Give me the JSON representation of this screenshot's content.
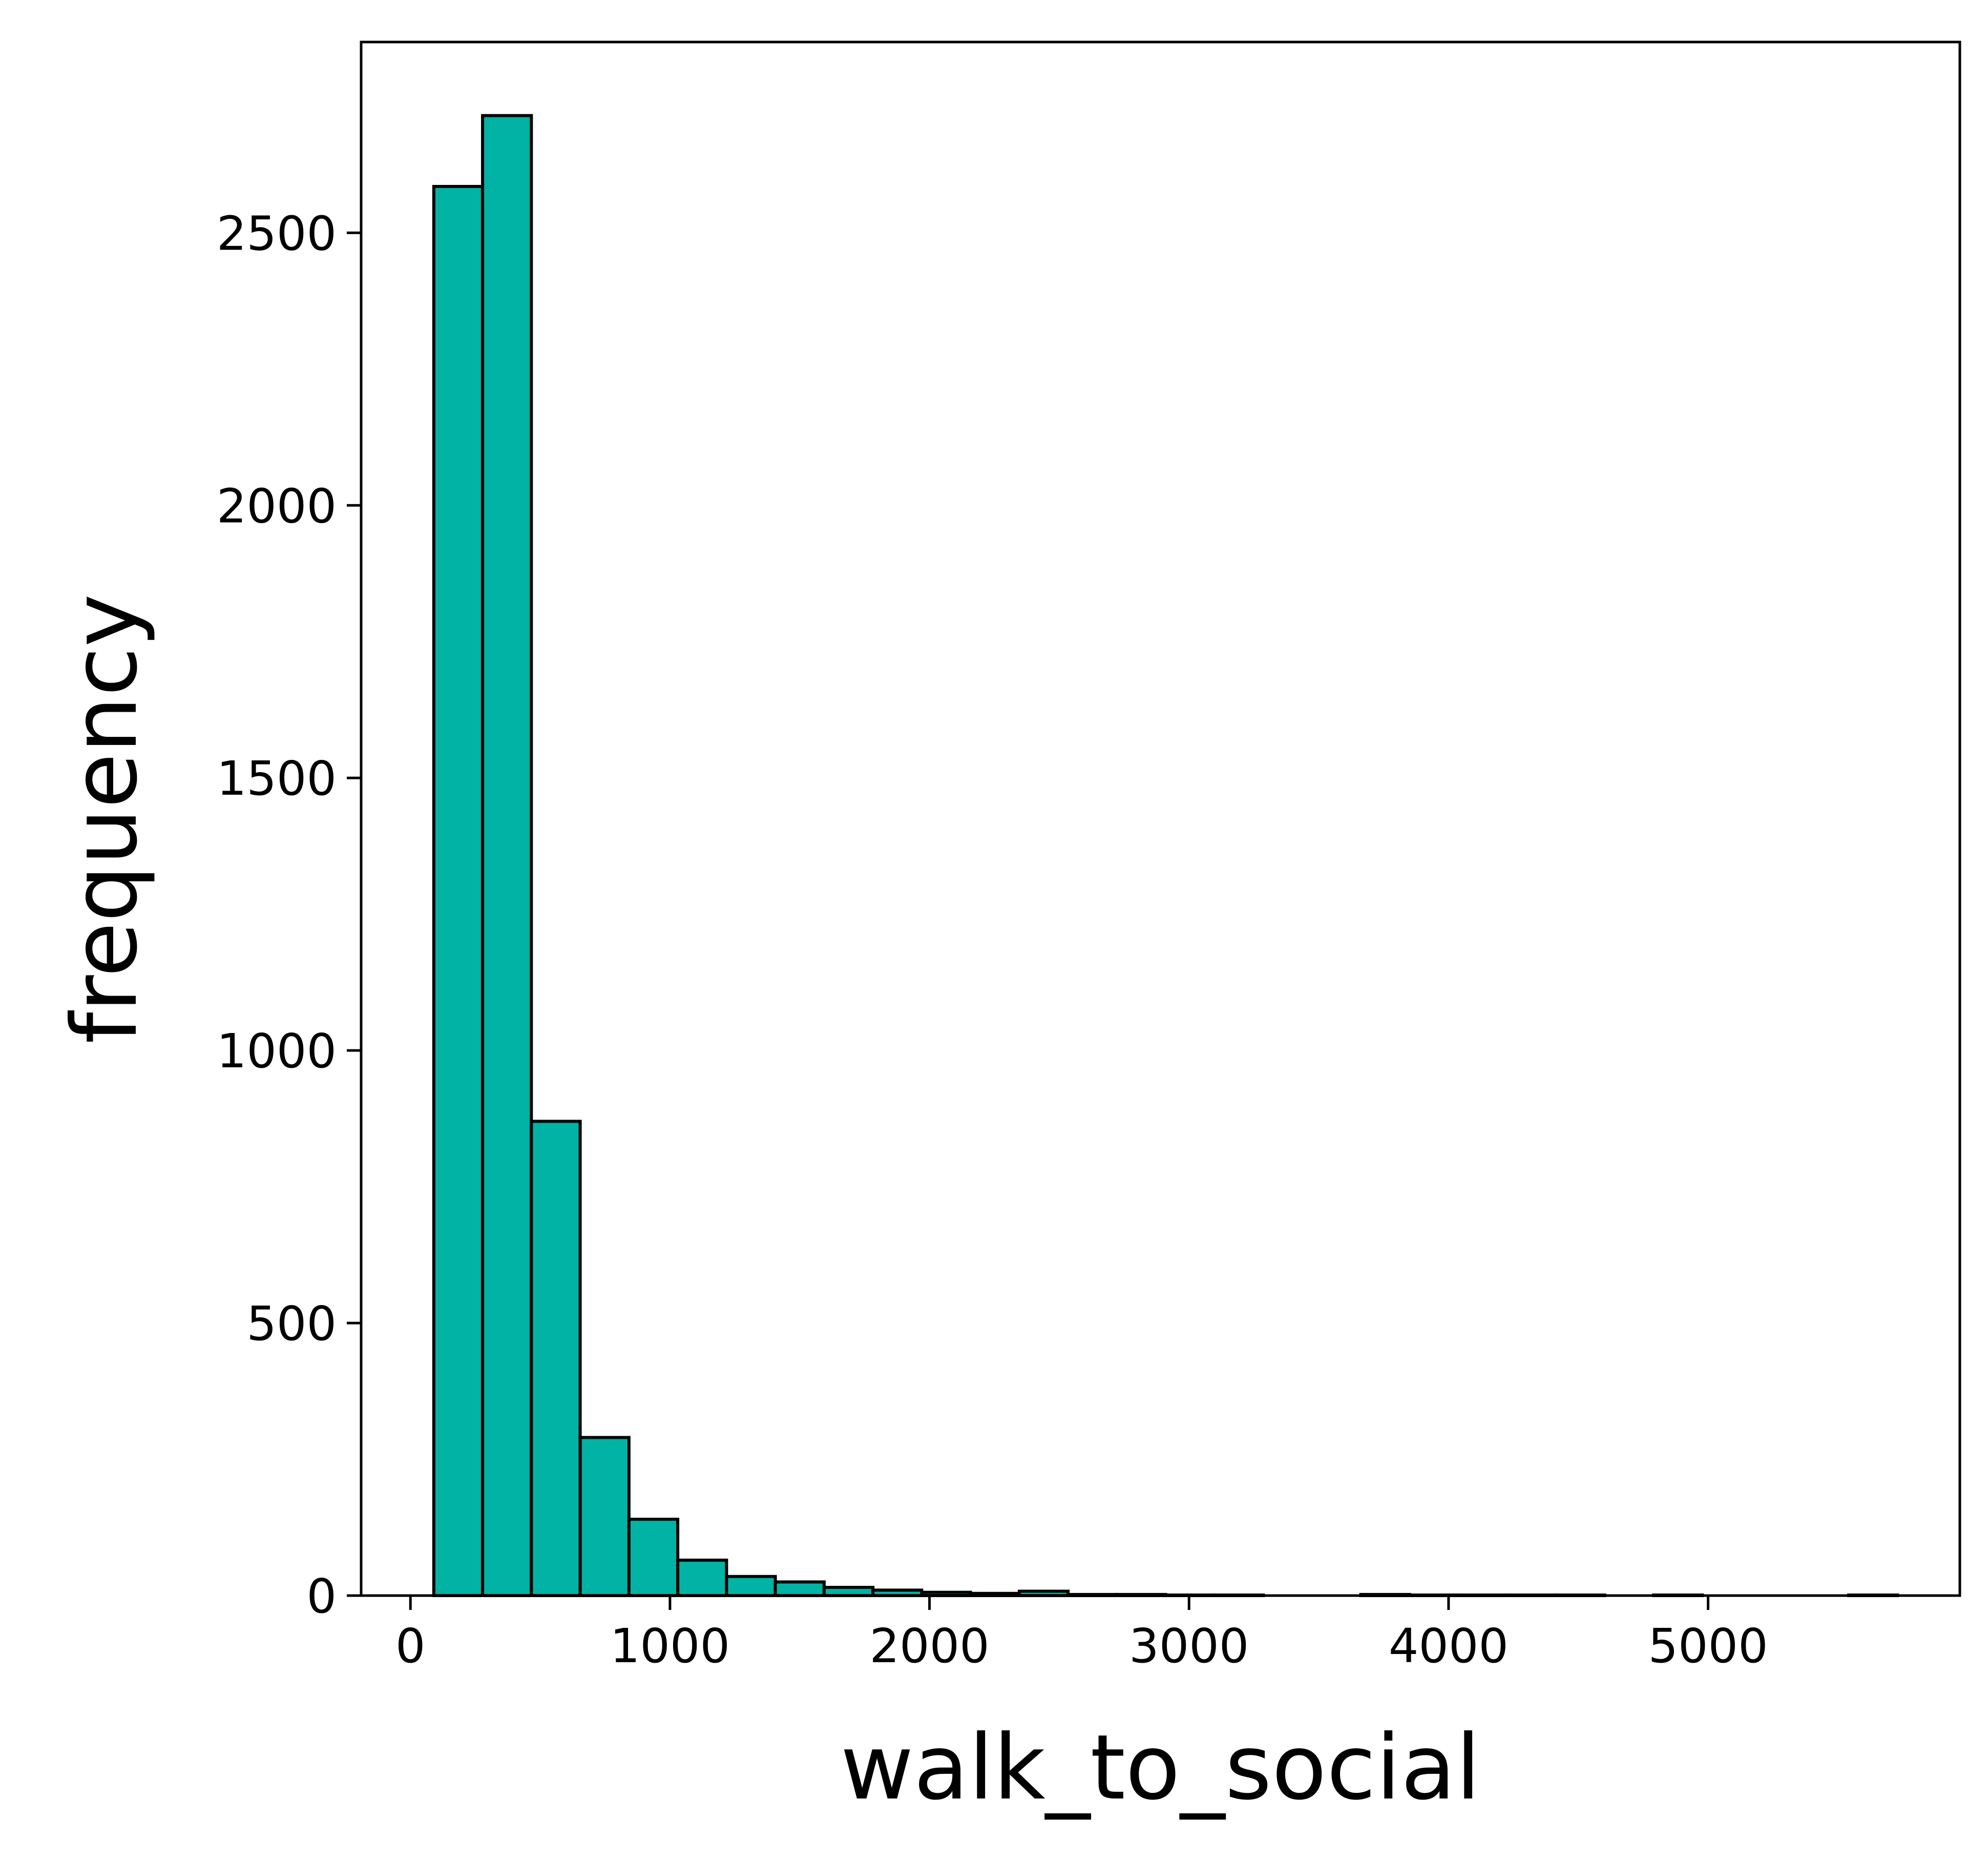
{
  "chart_data": {
    "type": "bar",
    "subtype": "histogram",
    "title": "",
    "xlabel": "walk_to_social",
    "ylabel": "frequency",
    "xlim": [
      -190,
      5970
    ],
    "ylim": [
      0,
      2850
    ],
    "xticks": [
      0,
      1000,
      2000,
      3000,
      4000,
      5000
    ],
    "xtick_labels": [
      "0",
      "1000",
      "2000",
      "3000",
      "4000",
      "5000"
    ],
    "yticks": [
      0,
      500,
      1000,
      1500,
      2000,
      2500
    ],
    "ytick_labels": [
      "0",
      "500",
      "1000",
      "1500",
      "2000",
      "2500"
    ],
    "grid": false,
    "legend": "none",
    "bar_color": "#00b3a4",
    "edge_color": "#000000",
    "bin_width": 188,
    "bin_edges_start": 90,
    "values": [
      2585,
      2715,
      870,
      290,
      140,
      65,
      35,
      25,
      15,
      10,
      6,
      4,
      8,
      2,
      2,
      1,
      1,
      0,
      0,
      2,
      1,
      1,
      1,
      1,
      0,
      1,
      0,
      0,
      0,
      1
    ]
  }
}
